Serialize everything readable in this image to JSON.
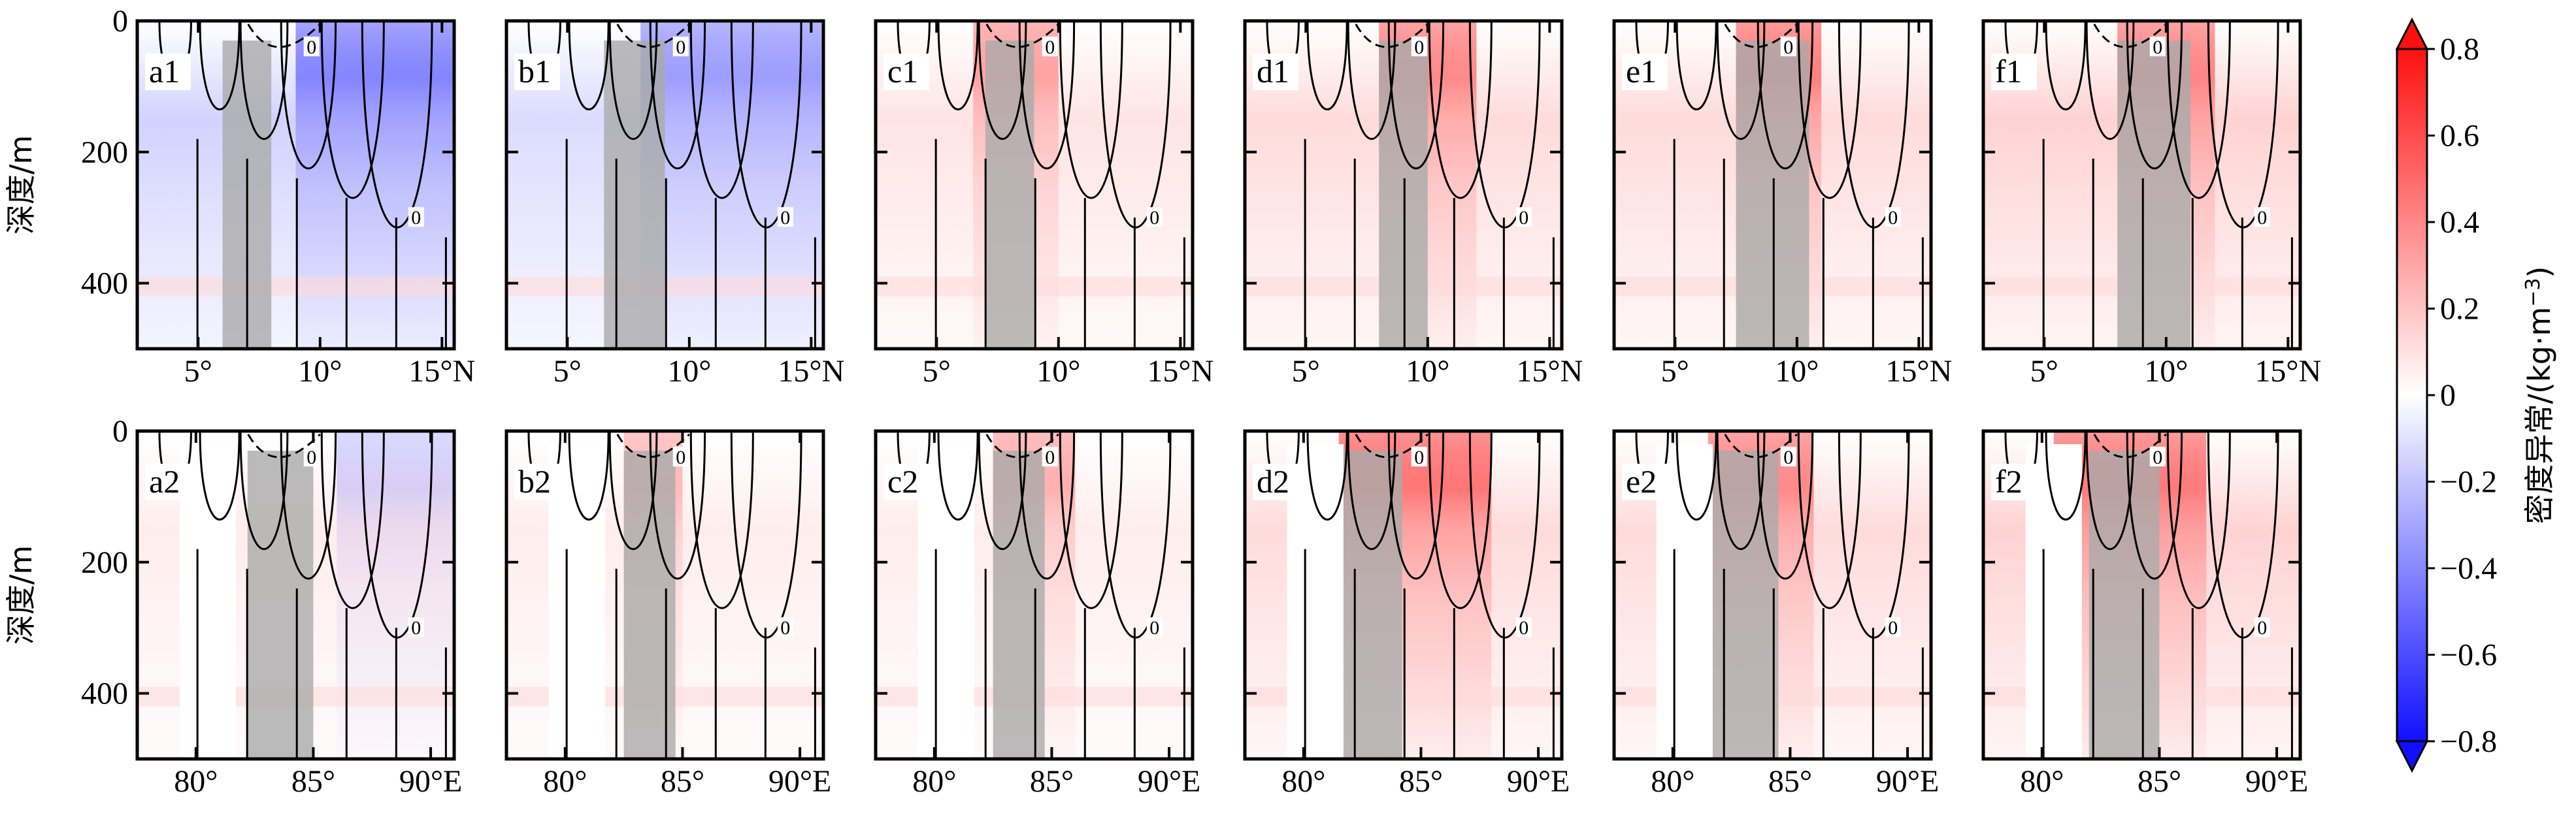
{
  "chart_data": {
    "type": "heatmap",
    "description_axes": {
      "y_label": "深度/m",
      "y_ticks": [
        0,
        200,
        400
      ],
      "y_range": [
        0,
        500
      ],
      "y_inverted": true
    },
    "rows": [
      {
        "x_ticks": [
          5,
          10,
          15
        ],
        "x_tick_labels": [
          "5°",
          "10°",
          "15°N"
        ],
        "x_range": [
          2.5,
          15.5
        ],
        "panels": [
          {
            "label": "a1",
            "shade": [
              6,
              8
            ],
            "upper_anomaly": -0.5,
            "upper_x": [
              9,
              15.5
            ],
            "mid_anomaly": -0.25
          },
          {
            "label": "b1",
            "shade": [
              6.5,
              9
            ],
            "upper_anomaly": -0.4,
            "upper_x": [
              8,
              15.5
            ],
            "mid_anomaly": -0.2
          },
          {
            "label": "c1",
            "shade": [
              7,
              9
            ],
            "upper_anomaly": 0.4,
            "upper_x": [
              6.5,
              10
            ],
            "mid_anomaly": 0.15
          },
          {
            "label": "d1",
            "shade": [
              8,
              10
            ],
            "upper_anomaly": 0.5,
            "upper_x": [
              8,
              12
            ],
            "mid_anomaly": 0.2
          },
          {
            "label": "e1",
            "shade": [
              7.5,
              10.5
            ],
            "upper_anomaly": 0.55,
            "upper_x": [
              7.5,
              11
            ],
            "mid_anomaly": 0.2
          },
          {
            "label": "f1",
            "shade": [
              8,
              11
            ],
            "upper_anomaly": 0.5,
            "upper_x": [
              8,
              12
            ],
            "mid_anomaly": 0.25
          }
        ]
      },
      {
        "x_ticks": [
          80,
          85,
          90
        ],
        "x_tick_labels": [
          "80°",
          "85°",
          "90°E"
        ],
        "x_range": [
          77.5,
          91
        ],
        "panels": [
          {
            "label": "a2",
            "shade": [
              82.2,
              85
            ],
            "upper_anomaly": -0.2,
            "upper_x": [
              86,
              91
            ],
            "mid_anomaly": 0.1
          },
          {
            "label": "b2",
            "shade": [
              82.5,
              84.7
            ],
            "upper_anomaly": 0.3,
            "upper_x": [
              82.5,
              85
            ],
            "mid_anomaly": 0.1
          },
          {
            "label": "c2",
            "shade": [
              82.5,
              84.7
            ],
            "upper_anomaly": 0.35,
            "upper_x": [
              82.5,
              86
            ],
            "mid_anomaly": 0.1
          },
          {
            "label": "d2",
            "shade": [
              81.5,
              84.2
            ],
            "upper_anomaly": 0.6,
            "upper_x": [
              81.5,
              88
            ],
            "mid_anomaly": 0.2
          },
          {
            "label": "e2",
            "shade": [
              81.5,
              84.5
            ],
            "upper_anomaly": 0.5,
            "upper_x": [
              81.5,
              86
            ],
            "mid_anomaly": 0.2
          },
          {
            "label": "f2",
            "shade": [
              82,
              85
            ],
            "upper_anomaly": 0.55,
            "upper_x": [
              80.5,
              87
            ],
            "mid_anomaly": 0.25
          }
        ]
      }
    ],
    "colorbar": {
      "label": "密度异常/(kg·m",
      "label_exponent": "−3",
      "label_close": ")",
      "range": [
        -0.8,
        0.8
      ],
      "ticks": [
        0.8,
        0.6,
        0.4,
        0.2,
        0,
        -0.2,
        -0.4,
        -0.6,
        -0.8
      ],
      "tick_labels": [
        "0.8",
        "0.6",
        "0.4",
        "0.2",
        "0",
        "−0.2",
        "−0.4",
        "−0.6",
        "−0.8"
      ],
      "colormap": "bwr",
      "color_low": "#1010ff",
      "color_mid": "#ffffff",
      "color_high": "#ff1010"
    },
    "contour_label": "0",
    "shade_color": "#aaaaaa"
  }
}
